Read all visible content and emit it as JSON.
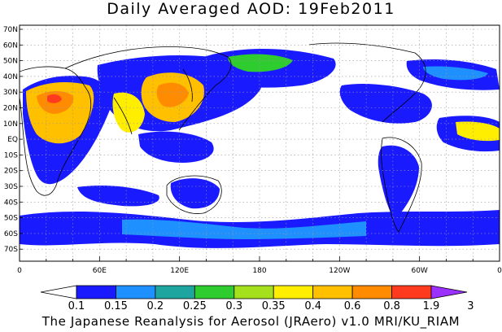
{
  "title": "Daily Averaged AOD: 19Feb2011",
  "credit": "The Japanese Reanalysis for Aerosol (JRAero) v1.0 MRI/KU_RIAM",
  "lat_labels": [
    "70N",
    "60N",
    "50N",
    "40N",
    "30N",
    "20N",
    "10N",
    "EQ",
    "10S",
    "20S",
    "30S",
    "40S",
    "50S",
    "60S",
    "70S"
  ],
  "lon_labels": [
    "0",
    "60E",
    "120E",
    "180",
    "120W",
    "60W",
    "0"
  ],
  "colorbar": {
    "labels": [
      "0.1",
      "0.15",
      "0.2",
      "0.25",
      "0.3",
      "0.35",
      "0.4",
      "0.6",
      "0.8",
      "1.9",
      "3"
    ],
    "colors": [
      "#ffffff",
      "#1a1aff",
      "#1e90ff",
      "#1fa5a0",
      "#2ecc2e",
      "#a4e01c",
      "#ffee00",
      "#ffc000",
      "#ff8c00",
      "#ff3b1f",
      "#9b30ff"
    ]
  }
}
